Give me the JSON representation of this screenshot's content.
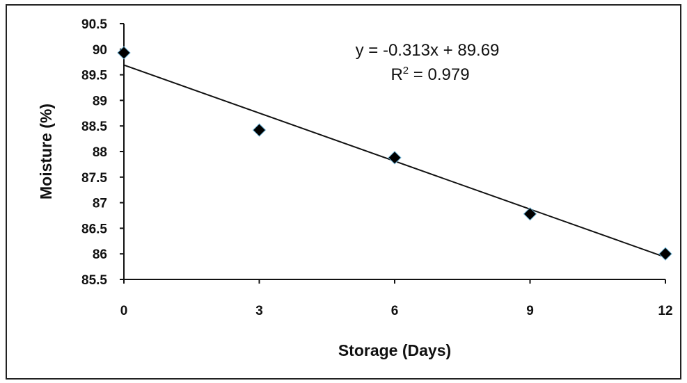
{
  "chart_data": {
    "type": "scatter",
    "xlabel": "Storage (Days)",
    "ylabel": "Moisture (%)",
    "x_ticks": [
      "0",
      "3",
      "6",
      "9",
      "12"
    ],
    "y_ticks": [
      "85.5",
      "86",
      "86.5",
      "87",
      "87.5",
      "88",
      "88.5",
      "89",
      "89.5",
      "90",
      "90.5"
    ],
    "xlim": [
      0,
      12
    ],
    "ylim": [
      85.5,
      90.5
    ],
    "grid": false,
    "series": [
      {
        "x": [
          0,
          3,
          6,
          9,
          12
        ],
        "y": [
          89.93,
          88.42,
          87.88,
          86.78,
          86.0
        ],
        "marker": "diamond",
        "color": "#000000"
      }
    ],
    "trendline": {
      "slope": -0.313,
      "intercept": 89.69,
      "equation": "y = -0.313x + 89.69",
      "r2_label": "R",
      "r2_sup": "2",
      "r2_value": " = 0.979"
    }
  }
}
